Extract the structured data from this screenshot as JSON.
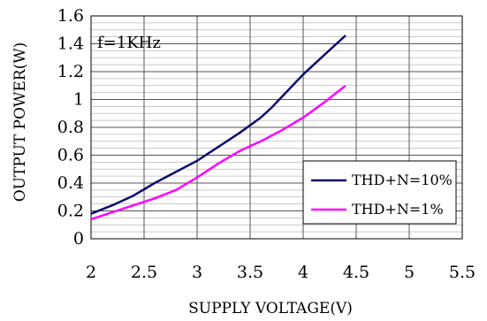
{
  "chart_data": {
    "type": "line",
    "title": "",
    "xlabel": "SUPPLY VOLTAGE(V)",
    "ylabel": "OUTPUT POWER(W)",
    "xlim": [
      2,
      5.5
    ],
    "ylim": [
      0,
      1.6
    ],
    "x_ticks": [
      2,
      2.5,
      3,
      3.5,
      4,
      4.5,
      5,
      5.5
    ],
    "x_tick_labels": [
      "2",
      "2.5",
      "3",
      "3.5",
      "4",
      "4.5",
      "5",
      "5.5"
    ],
    "y_ticks": [
      0,
      0.2,
      0.4,
      0.6,
      0.8,
      1,
      1.2,
      1.4,
      1.6
    ],
    "y_tick_labels": [
      "0",
      "0.2",
      "0.4",
      "0.6",
      "0.8",
      "1",
      "1.2",
      "1.4",
      "1.6"
    ],
    "y_minor_step": 0.05,
    "grid": true,
    "annotation": "f=1KHz",
    "legend_position": "bottom-right",
    "series": [
      {
        "name": "THD+N=10%",
        "color": "#0b0b6e",
        "x": [
          2.0,
          2.2,
          2.4,
          2.6,
          2.8,
          3.0,
          3.2,
          3.4,
          3.6,
          3.7,
          3.8,
          4.0,
          4.2,
          4.4
        ],
        "y": [
          0.18,
          0.24,
          0.31,
          0.4,
          0.48,
          0.56,
          0.66,
          0.76,
          0.87,
          0.94,
          1.02,
          1.18,
          1.32,
          1.46
        ]
      },
      {
        "name": "THD+N=1%",
        "color": "#ff00ff",
        "x": [
          2.0,
          2.2,
          2.4,
          2.6,
          2.8,
          3.0,
          3.2,
          3.4,
          3.6,
          3.8,
          4.0,
          4.2,
          4.4
        ],
        "y": [
          0.14,
          0.19,
          0.24,
          0.29,
          0.35,
          0.44,
          0.54,
          0.63,
          0.7,
          0.78,
          0.87,
          0.98,
          1.1
        ]
      }
    ]
  }
}
